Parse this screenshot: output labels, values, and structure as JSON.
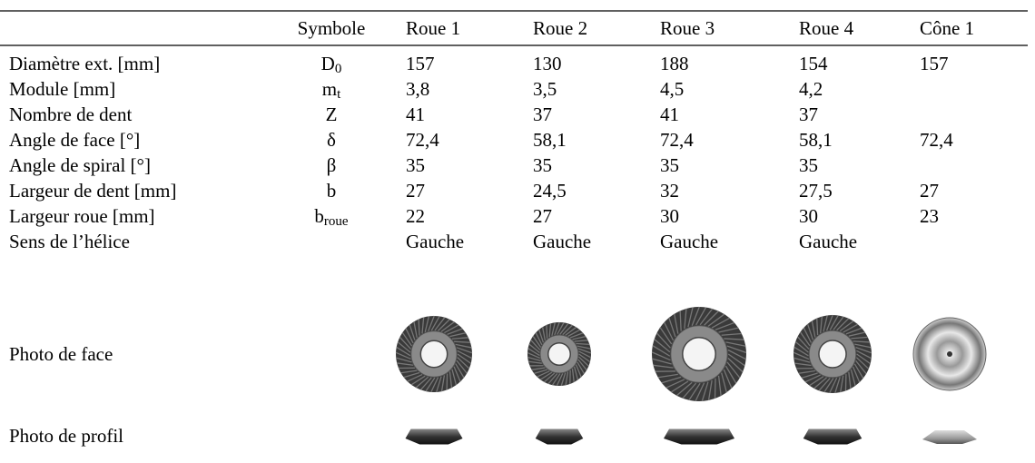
{
  "table": {
    "columns": [
      "Symbole",
      "Roue 1",
      "Roue 2",
      "Roue 3",
      "Roue 4",
      "Cône 1"
    ],
    "rows": [
      {
        "label": "Diamètre ext. [mm]",
        "symbol": {
          "base": "D",
          "sub": "0"
        },
        "values": [
          "157",
          "130",
          "188",
          "154",
          "157"
        ]
      },
      {
        "label": "Module [mm]",
        "symbol": {
          "base": "m",
          "sub": "t"
        },
        "values": [
          "3,8",
          "3,5",
          "4,5",
          "4,2",
          null
        ]
      },
      {
        "label": "Nombre de dent",
        "symbol": {
          "base": "Z"
        },
        "values": [
          "41",
          "37",
          "41",
          "37",
          null
        ]
      },
      {
        "label": "Angle de face [°]",
        "symbol": {
          "base": "δ"
        },
        "values": [
          "72,4",
          "58,1",
          "72,4",
          "58,1",
          "72,4"
        ]
      },
      {
        "label": "Angle de spiral [°]",
        "symbol": {
          "base": "β"
        },
        "values": [
          "35",
          "35",
          "35",
          "35",
          null
        ]
      },
      {
        "label": "Largeur de dent [mm]",
        "symbol": {
          "base": "b"
        },
        "values": [
          "27",
          "24,5",
          "32",
          "27,5",
          "27"
        ]
      },
      {
        "label": "Largeur roue [mm]",
        "symbol": {
          "base": "b",
          "sub": "roue"
        },
        "values": [
          "22",
          "27",
          "30",
          "30",
          "23"
        ]
      },
      {
        "label": "Sens de l’hélice",
        "symbol": null,
        "values": [
          "Gauche",
          "Gauche",
          "Gauche",
          "Gauche",
          null
        ]
      }
    ],
    "photo_rows": [
      "Photo de face",
      "Photo de profil"
    ]
  }
}
